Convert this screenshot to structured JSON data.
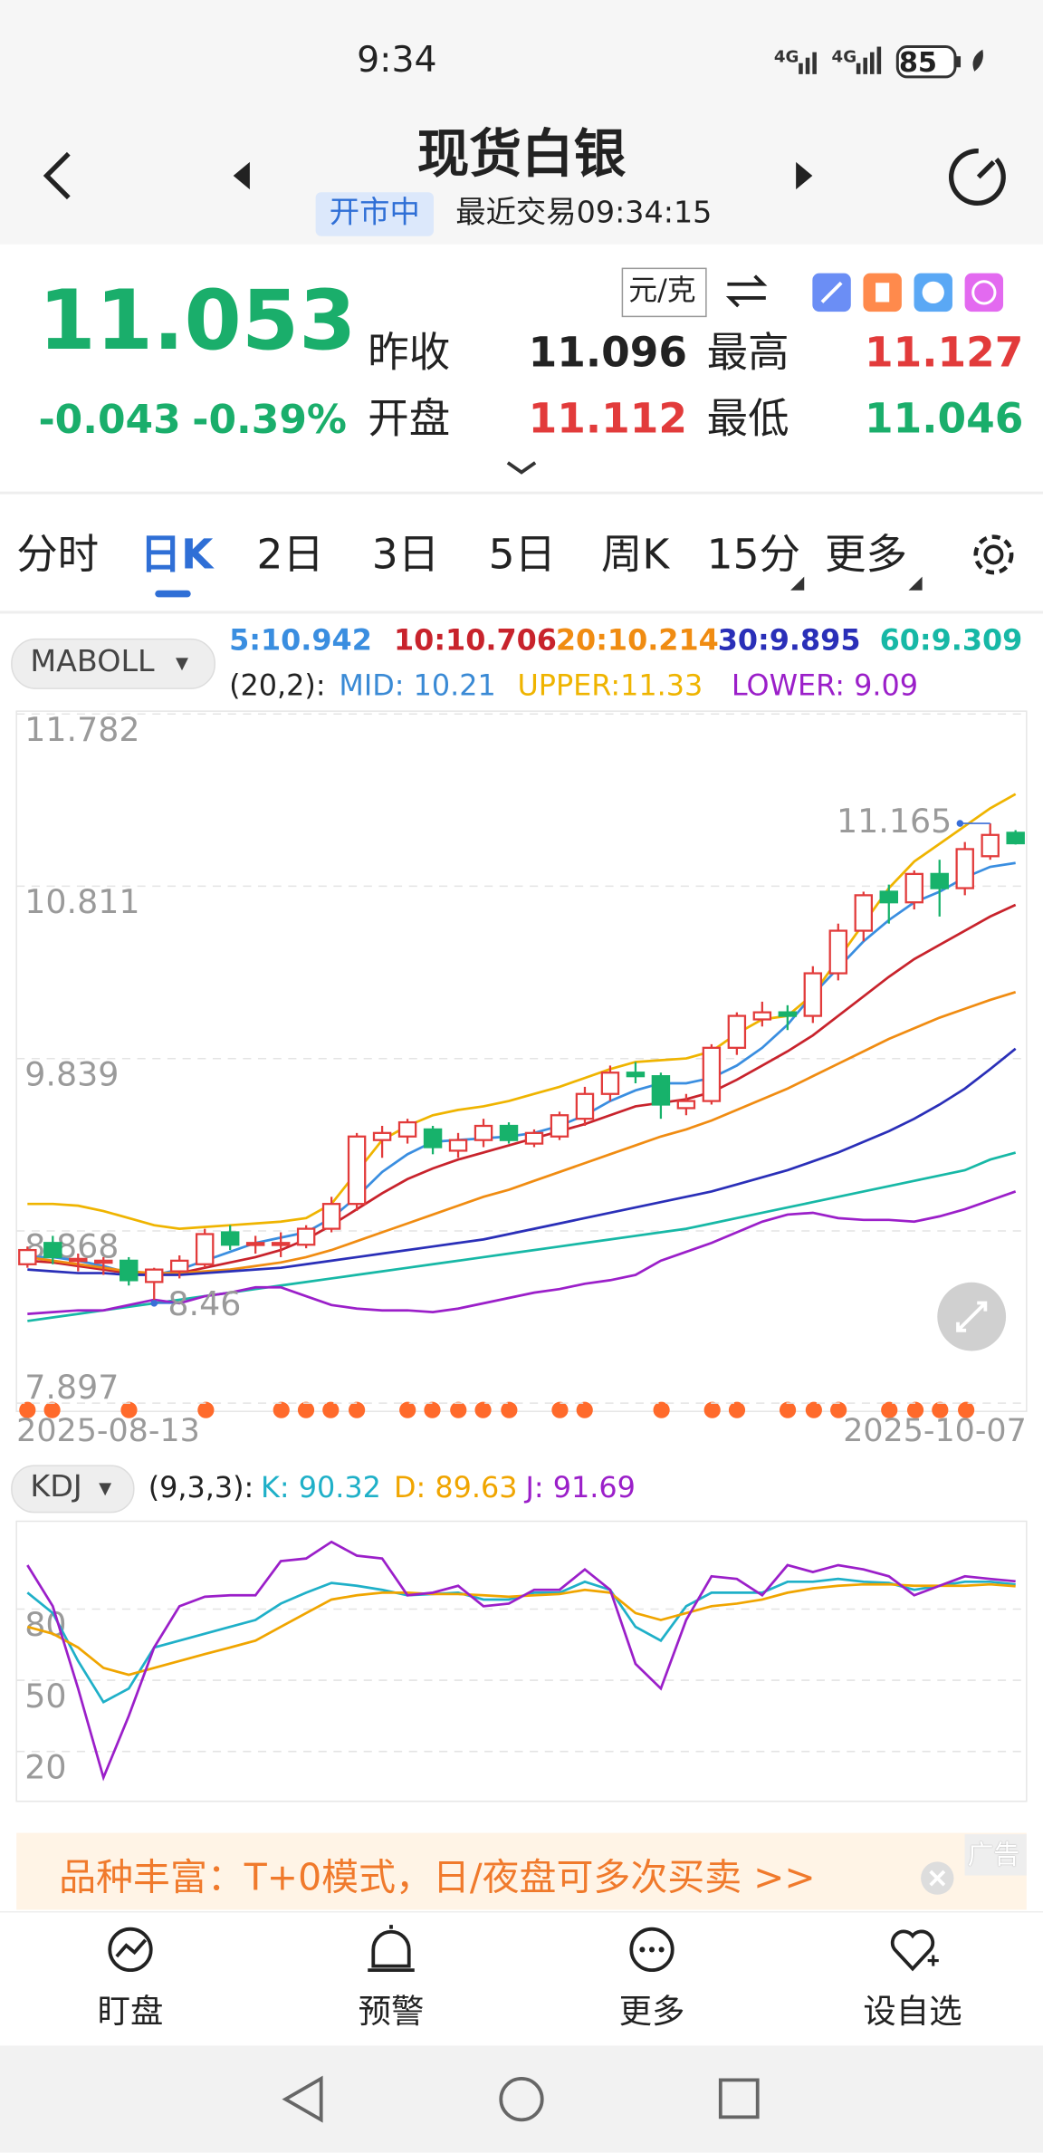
{
  "status_bar": {
    "time": "9:34",
    "battery": "85"
  },
  "header": {
    "title": "现货白银",
    "status": "开市中",
    "last_trade": "最近交易09:34:15"
  },
  "quote": {
    "price": "11.053",
    "change": "-0.043",
    "change_pct": "-0.39%",
    "unit": "元/克",
    "stats": [
      {
        "label": "昨收",
        "value": "11.096"
      },
      {
        "label": "最高",
        "value": "11.127"
      },
      {
        "label": "开盘",
        "value": "11.112"
      },
      {
        "label": "最低",
        "value": "11.046"
      }
    ]
  },
  "tabs": [
    "分时",
    "日K",
    "2日",
    "3日",
    "5日",
    "周K",
    "15分",
    "更多"
  ],
  "indicator": {
    "name": "MABOLL",
    "boll_params": "(20,2):",
    "mid_label": "MID: 10.21"
  },
  "kdj_indicator": {
    "name": "KDJ",
    "params": "(9,3,3):"
  },
  "chart_data": [
    {
      "type": "candlestick",
      "up_color": "#e23b3b",
      "down_color": "#17b26b",
      "categories": [
        "2025-08-13",
        null,
        null,
        null,
        null,
        null,
        null,
        null,
        null,
        null,
        null,
        null,
        null,
        null,
        null,
        null,
        null,
        null,
        null,
        null,
        null,
        null,
        null,
        null,
        null,
        null,
        null,
        null,
        null,
        null,
        null,
        null,
        null,
        null,
        null,
        null,
        null,
        null,
        null,
        "2025-10-07"
      ],
      "open": [
        8.68,
        8.8,
        8.7,
        8.7,
        8.7,
        8.58,
        8.64,
        8.68,
        8.86,
        8.8,
        8.8,
        8.79,
        8.88,
        9.02,
        9.38,
        9.4,
        9.44,
        9.32,
        9.38,
        9.46,
        9.36,
        9.4,
        9.5,
        9.64,
        9.76,
        9.74,
        9.56,
        9.6,
        9.9,
        10.06,
        10.1,
        10.08,
        10.32,
        10.56,
        10.78,
        10.72,
        10.88,
        10.8,
        10.98,
        11.112
      ],
      "high": [
        8.78,
        8.84,
        8.74,
        8.72,
        8.72,
        8.66,
        8.73,
        8.88,
        8.9,
        8.84,
        8.86,
        8.9,
        9.06,
        9.42,
        9.46,
        9.5,
        9.46,
        9.42,
        9.5,
        9.48,
        9.44,
        9.54,
        9.68,
        9.8,
        9.82,
        9.76,
        9.64,
        9.92,
        10.1,
        10.16,
        10.14,
        10.36,
        10.6,
        10.78,
        10.82,
        10.9,
        10.96,
        11.06,
        11.165,
        11.127
      ],
      "low": [
        8.66,
        8.68,
        8.64,
        8.62,
        8.56,
        8.46,
        8.6,
        8.66,
        8.76,
        8.74,
        8.72,
        8.77,
        8.86,
        8.98,
        9.28,
        9.36,
        9.3,
        9.28,
        9.34,
        9.36,
        9.34,
        9.38,
        9.46,
        9.6,
        9.7,
        9.5,
        9.52,
        9.58,
        9.86,
        10.02,
        10.0,
        10.04,
        10.28,
        10.5,
        10.6,
        10.68,
        10.64,
        10.76,
        10.96,
        11.046
      ],
      "close": [
        8.76,
        8.72,
        8.71,
        8.7,
        8.59,
        8.65,
        8.7,
        8.85,
        8.79,
        8.8,
        8.8,
        8.88,
        9.02,
        9.4,
        9.42,
        9.48,
        9.34,
        9.38,
        9.46,
        9.38,
        9.42,
        9.52,
        9.64,
        9.76,
        9.74,
        9.58,
        9.6,
        9.9,
        10.08,
        10.1,
        10.08,
        10.32,
        10.56,
        10.76,
        10.72,
        10.88,
        10.8,
        11.02,
        11.1,
        11.053
      ],
      "series": [
        {
          "name": "5:10.942",
          "color": "#3a8ee0",
          "values": [
            8.72,
            8.72,
            8.7,
            8.67,
            8.63,
            8.62,
            8.65,
            8.7,
            8.75,
            8.8,
            8.83,
            8.86,
            8.94,
            9.06,
            9.2,
            9.3,
            9.37,
            9.38,
            9.39,
            9.4,
            9.42,
            9.46,
            9.52,
            9.6,
            9.66,
            9.7,
            9.7,
            9.73,
            9.8,
            9.9,
            10.03,
            10.2,
            10.35,
            10.5,
            10.62,
            10.72,
            10.78,
            10.86,
            10.92,
            10.942
          ]
        },
        {
          "name": "10:10.706",
          "color": "#c8232c",
          "values": [
            8.7,
            8.69,
            8.67,
            8.65,
            8.63,
            8.62,
            8.63,
            8.66,
            8.69,
            8.72,
            8.76,
            8.82,
            8.9,
            8.99,
            9.08,
            9.16,
            9.22,
            9.27,
            9.31,
            9.35,
            9.39,
            9.43,
            9.47,
            9.52,
            9.57,
            9.59,
            9.61,
            9.65,
            9.72,
            9.8,
            9.88,
            9.97,
            10.08,
            10.19,
            10.3,
            10.4,
            10.48,
            10.56,
            10.64,
            10.706
          ]
        },
        {
          "name": "20:10.214",
          "color": "#f08c12",
          "values": [
            8.72,
            8.7,
            8.68,
            8.66,
            8.64,
            8.63,
            8.63,
            8.64,
            8.65,
            8.67,
            8.69,
            8.72,
            8.76,
            8.81,
            8.86,
            8.91,
            8.96,
            9.01,
            9.06,
            9.1,
            9.15,
            9.2,
            9.25,
            9.3,
            9.35,
            9.4,
            9.44,
            9.49,
            9.55,
            9.61,
            9.67,
            9.74,
            9.81,
            9.88,
            9.95,
            10.01,
            10.07,
            10.12,
            10.17,
            10.214
          ]
        },
        {
          "name": "30:9.895",
          "color": "#2a2fb8",
          "values": [
            8.65,
            8.64,
            8.63,
            8.63,
            8.62,
            8.62,
            8.62,
            8.63,
            8.64,
            8.65,
            8.66,
            8.68,
            8.7,
            8.72,
            8.74,
            8.76,
            8.78,
            8.8,
            8.82,
            8.85,
            8.88,
            8.91,
            8.94,
            8.97,
            9.0,
            9.03,
            9.06,
            9.09,
            9.13,
            9.17,
            9.21,
            9.26,
            9.31,
            9.37,
            9.43,
            9.5,
            9.58,
            9.67,
            9.78,
            9.895
          ]
        },
        {
          "name": "60:9.309",
          "color": "#17b8a6",
          "values": [
            8.36,
            8.38,
            8.4,
            8.42,
            8.44,
            8.46,
            8.48,
            8.5,
            8.52,
            8.54,
            8.56,
            8.58,
            8.6,
            8.62,
            8.64,
            8.66,
            8.68,
            8.7,
            8.72,
            8.74,
            8.76,
            8.78,
            8.8,
            8.82,
            8.84,
            8.86,
            8.88,
            8.91,
            8.94,
            8.97,
            9.0,
            9.03,
            9.06,
            9.09,
            9.12,
            9.15,
            9.18,
            9.21,
            9.27,
            9.309
          ]
        },
        {
          "name": "UPPER:11.33",
          "color": "#efb400",
          "values": [
            9.02,
            9.02,
            9.01,
            8.98,
            8.94,
            8.9,
            8.88,
            8.89,
            8.9,
            8.91,
            8.92,
            8.94,
            9.02,
            9.2,
            9.38,
            9.46,
            9.52,
            9.55,
            9.57,
            9.6,
            9.64,
            9.68,
            9.73,
            9.78,
            9.82,
            9.83,
            9.84,
            9.88,
            9.98,
            10.06,
            10.08,
            10.2,
            10.4,
            10.6,
            10.8,
            10.95,
            11.05,
            11.15,
            11.25,
            11.33
          ]
        },
        {
          "name": "LOWER: 9.09",
          "color": "#9b1fc9",
          "values": [
            8.4,
            8.41,
            8.42,
            8.42,
            8.45,
            8.48,
            8.46,
            8.5,
            8.52,
            8.55,
            8.55,
            8.5,
            8.45,
            8.43,
            8.42,
            8.42,
            8.41,
            8.43,
            8.46,
            8.49,
            8.52,
            8.54,
            8.57,
            8.59,
            8.62,
            8.7,
            8.75,
            8.8,
            8.86,
            8.92,
            8.96,
            8.97,
            8.94,
            8.93,
            8.93,
            8.92,
            8.95,
            8.99,
            9.04,
            9.09
          ]
        }
      ],
      "ylim": [
        7.897,
        11.782
      ],
      "yticks": [
        7.897,
        8.868,
        9.839,
        10.811,
        11.782
      ],
      "grid": true
    },
    {
      "type": "line",
      "ylim": [
        -1,
        117
      ],
      "yticks": [
        20,
        50,
        80
      ],
      "grid": true,
      "series": [
        {
          "name": "K: 90.32",
          "color": "#1fb0c8",
          "values": [
            86.9,
            78.3,
            58.1,
            40.8,
            46.5,
            63.8,
            66.7,
            69.6,
            72.5,
            75.4,
            82.3,
            86.9,
            91.0,
            89.8,
            88.1,
            85.8,
            86.3,
            86.9,
            84.0,
            84.0,
            86.9,
            86.9,
            91.5,
            88.1,
            72.5,
            66.7,
            81.2,
            86.9,
            86.9,
            86.9,
            91.5,
            91.5,
            92.7,
            91.5,
            91.0,
            88.1,
            89.8,
            91.5,
            91.5,
            90.32
          ]
        },
        {
          "name": "D: 89.63",
          "color": "#f0a500",
          "values": [
            72.5,
            69.6,
            63.8,
            55.2,
            52.3,
            55.2,
            58.1,
            61.0,
            63.8,
            66.7,
            72.5,
            78.3,
            84.0,
            85.8,
            86.9,
            86.9,
            86.3,
            86.3,
            85.8,
            85.2,
            85.8,
            86.3,
            88.1,
            86.9,
            78.3,
            75.4,
            78.3,
            81.2,
            82.3,
            84.0,
            86.9,
            88.7,
            89.8,
            90.4,
            90.4,
            89.8,
            89.8,
            89.8,
            90.4,
            89.63
          ]
        },
        {
          "name": "J: 91.69",
          "color": "#9b1fc9",
          "values": [
            98.5,
            81.2,
            46.5,
            9.0,
            35.0,
            63.8,
            81.2,
            85.2,
            85.8,
            85.8,
            100.2,
            101.3,
            108.3,
            102.5,
            101.3,
            85.8,
            86.9,
            89.8,
            81.2,
            82.3,
            88.1,
            88.1,
            96.7,
            88.1,
            56.9,
            46.5,
            75.4,
            93.8,
            92.7,
            85.8,
            98.5,
            95.6,
            98.5,
            96.7,
            93.8,
            85.8,
            89.8,
            93.8,
            92.7,
            91.69
          ]
        }
      ]
    }
  ],
  "ad": {
    "text": "品种丰富：T+0模式，日/夜盘可多次买卖 >>",
    "tag": "广告"
  },
  "nav": [
    "盯盘",
    "预警",
    "更多",
    "设自选"
  ]
}
